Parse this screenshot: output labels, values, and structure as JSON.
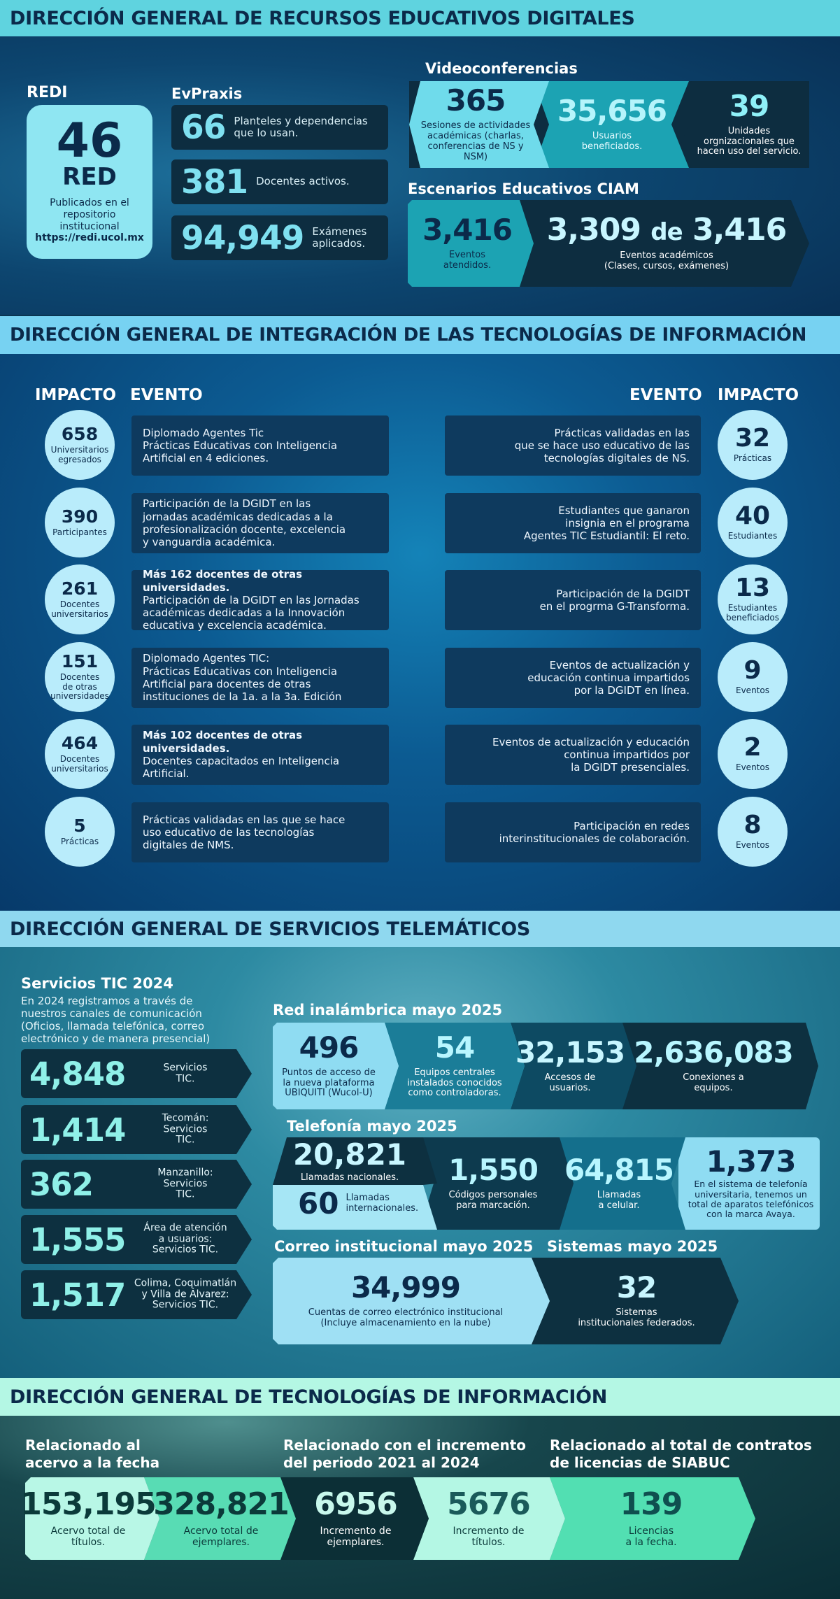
{
  "s1": {
    "title": "DIRECCIÓN GENERAL DE RECURSOS EDUCATIVOS DIGITALES",
    "redi": {
      "label": "REDI",
      "num": "46",
      "sub": "RED",
      "text1": "Publicados en el",
      "text2": "repositorio",
      "text3": "institucional",
      "url": "https://redi.ucol.mx"
    },
    "evpraxis": {
      "label": "EvPraxis",
      "items": [
        {
          "num": "66",
          "text1": "Planteles y dependencias",
          "text2": "que lo usan."
        },
        {
          "num": "381",
          "text1": "Docentes activos.",
          "text2": ""
        },
        {
          "num": "94,949",
          "text1": "Exámenes",
          "text2": "aplicados."
        }
      ]
    },
    "video": {
      "label": "Videoconferencias",
      "items": [
        {
          "num": "365",
          "t1": "Sesiones de actividades",
          "t2": "académicas (charlas,",
          "t3": "conferencias de NS y NSM)"
        },
        {
          "num": "35,656",
          "t1": "Usuarios",
          "t2": "beneficiados.",
          "t3": ""
        },
        {
          "num": "39",
          "t1": "Unidades",
          "t2": "orgnizacionales que",
          "t3": "hacen uso del servicio."
        }
      ]
    },
    "ciam": {
      "label": "Escenarios Educativos CIAM",
      "a": {
        "num": "3,416",
        "t1": "Eventos",
        "t2": "atendidos."
      },
      "b": {
        "num1": "3,309",
        "de": "de",
        "num2": "3,416",
        "t1": "Eventos académicos",
        "t2": "(Clases, cursos, exámenes)"
      }
    }
  },
  "s2": {
    "title": "DIRECCIÓN GENERAL DE INTEGRACIÓN DE LAS TECNOLOGÍAS DE INFORMACIÓN",
    "h_impacto": "IMPACTO",
    "h_evento": "EVENTO",
    "left": [
      {
        "num": "658",
        "lab1": "Universitarios",
        "lab2": "egresados",
        "lab3": "",
        "bold": "",
        "l1": "Diplomado Agentes Tic",
        "l2": "Prácticas Educativas con Inteligencia",
        "l3": "Artificial en 4 ediciones.",
        "l4": ""
      },
      {
        "num": "390",
        "lab1": "Participantes",
        "lab2": "",
        "lab3": "",
        "bold": "",
        "l1": "Participación de la DGIDT en las",
        "l2": "jornadas académicas dedicadas a la",
        "l3": "profesionalización docente, excelencia",
        "l4": "y vanguardia académica."
      },
      {
        "num": "261",
        "lab1": "Docentes",
        "lab2": "universitarios",
        "lab3": "",
        "bold": "Más 162 docentes de otras universidades.",
        "l1": "Participación de la DGIDT en las Jornadas",
        "l2": "académicas dedicadas a la Innovación",
        "l3": "educativa y excelencia académica.",
        "l4": ""
      },
      {
        "num": "151",
        "lab1": "Docentes",
        "lab2": "de otras",
        "lab3": "universidades",
        "bold": "",
        "l1": "Diplomado Agentes TIC:",
        "l2": "Prácticas Educativas con Inteligencia",
        "l3": "Artificial para docentes de otras",
        "l4": "instituciones de la 1a. a la 3a. Edición"
      },
      {
        "num": "464",
        "lab1": "Docentes",
        "lab2": "universitarios",
        "lab3": "",
        "bold": "Más 102 docentes de otras universidades.",
        "l1": "Docentes capacitados en Inteligencia",
        "l2": "Artificial.",
        "l3": "",
        "l4": ""
      },
      {
        "num": "5",
        "lab1": "Prácticas",
        "lab2": "",
        "lab3": "",
        "bold": "",
        "l1": "Prácticas validadas en las que se hace",
        "l2": "uso educativo de las tecnologías",
        "l3": "digitales de NMS.",
        "l4": ""
      }
    ],
    "right": [
      {
        "num": "32",
        "lab1": "Prácticas",
        "lab2": "",
        "l1": "Prácticas validadas en las",
        "l2": "que se hace uso educativo de las",
        "l3": "tecnologías digitales de NS."
      },
      {
        "num": "40",
        "lab1": "Estudiantes",
        "lab2": "",
        "l1": "Estudiantes que ganaron",
        "l2": "insignia en el programa",
        "l3": "Agentes TIC Estudiantil: El reto."
      },
      {
        "num": "13",
        "lab1": "Estudiantes",
        "lab2": "beneficiados",
        "l1": "Participación de la DGIDT",
        "l2": "en el progrma G-Transforma.",
        "l3": ""
      },
      {
        "num": "9",
        "lab1": "Eventos",
        "lab2": "",
        "l1": "Eventos de actualización y",
        "l2": "educación continua impartidos",
        "l3": "por la DGIDT en línea."
      },
      {
        "num": "2",
        "lab1": "Eventos",
        "lab2": "",
        "l1": "Eventos de actualización y educación",
        "l2": "continua impartidos por",
        "l3": "la DGIDT presenciales."
      },
      {
        "num": "8",
        "lab1": "Eventos",
        "lab2": "",
        "l1": "Participación en redes",
        "l2": "interinstitucionales de colaboración.",
        "l3": ""
      }
    ]
  },
  "s3": {
    "title": "DIRECCIÓN GENERAL DE SERVICIOS TELEMÁTICOS",
    "tic": {
      "label": "Servicios TIC 2024",
      "d1": "En 2024 registramos a través de",
      "d2": "nuestros canales de comunicación",
      "d3": "(Oficios, llamada telefónica, correo",
      "d4": "electrónico y de manera presencial)",
      "items": [
        {
          "num": "4,848",
          "t1": "Servicios",
          "t2": "TIC.",
          "t3": ""
        },
        {
          "num": "1,414",
          "t1": "Tecomán:",
          "t2": "Servicios",
          "t3": "TIC."
        },
        {
          "num": "362",
          "t1": "Manzanillo:",
          "t2": "Servicios",
          "t3": "TIC."
        },
        {
          "num": "1,555",
          "t1": "Área de atención",
          "t2": "a usuarios:",
          "t3": "Servicios TIC."
        },
        {
          "num": "1,517",
          "t1": "Colima, Coquimatlán",
          "t2": "y Villa de Álvarez:",
          "t3": "Servicios TIC."
        }
      ]
    },
    "wifi": {
      "label": "Red inalámbrica mayo 2025",
      "items": [
        {
          "num": "496",
          "t1": "Puntos de acceso de",
          "t2": "la nueva plataforma",
          "t3": "UBIQUITI (Wucol-U)"
        },
        {
          "num": "54",
          "t1": "Equipos centrales",
          "t2": "instalados conocidos",
          "t3": "como controladoras."
        },
        {
          "num": "32,153",
          "t1": "Accesos de",
          "t2": "usuarios.",
          "t3": ""
        },
        {
          "num": "2,636,083",
          "t1": "Conexiones a",
          "t2": "equipos.",
          "t3": ""
        }
      ]
    },
    "tel": {
      "label": "Telefonía mayo 2025",
      "nac": {
        "num": "20,821",
        "t": "Llamadas nacionales."
      },
      "intl": {
        "num": "60",
        "t1": "Llamadas",
        "t2": "internacionales."
      },
      "items": [
        {
          "num": "1,550",
          "t1": "Códigos personales",
          "t2": "para marcación.",
          "t3": "",
          "t4": ""
        },
        {
          "num": "64,815",
          "t1": "Llamadas",
          "t2": "a celular.",
          "t3": "",
          "t4": ""
        },
        {
          "num": "1,373",
          "t1": "En el sistema de telefonía",
          "t2": "universitaria, tenemos un",
          "t3": "total de aparatos telefónicos",
          "t4": "con la marca Avaya."
        }
      ]
    },
    "mail": {
      "label": "Correo institucional mayo 2025",
      "num": "34,999",
      "t1": "Cuentas de correo electrónico institucional",
      "t2": "(Incluye almacenamiento en la nube)"
    },
    "sys": {
      "label": "Sistemas mayo 2025",
      "num": "32",
      "t1": "Sistemas",
      "t2": "institucionales federados."
    }
  },
  "s4": {
    "title": "DIRECCIÓN GENERAL DE TECNOLOGÍAS DE INFORMACIÓN",
    "h1a": "Relacionado al",
    "h1b": "acervo a la fecha",
    "h2a": "Relacionado con el incremento",
    "h2b": "del periodo 2021 al 2024",
    "h3a": "Relacionado al total de contratos",
    "h3b": "de licencias de SIABUC",
    "items": [
      {
        "num": "153,195",
        "t1": "Acervo total de",
        "t2": "títulos."
      },
      {
        "num": "328,821",
        "t1": "Acervo total de",
        "t2": "ejemplares."
      },
      {
        "num": "6956",
        "t1": "Incremento de",
        "t2": "ejemplares."
      },
      {
        "num": "5676",
        "t1": "Incremento de",
        "t2": "títulos."
      },
      {
        "num": "139",
        "t1": "Licencias",
        "t2": "a la fecha."
      }
    ]
  }
}
